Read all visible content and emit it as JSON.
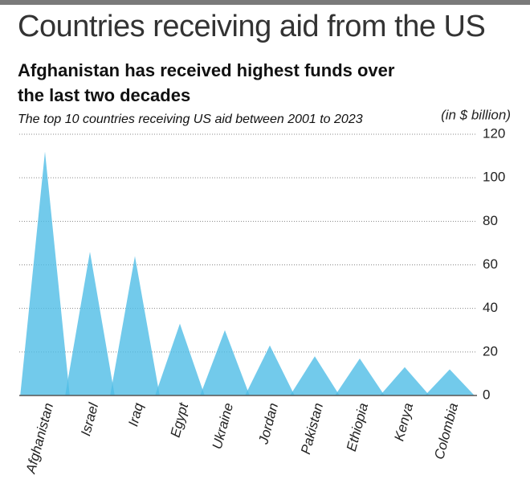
{
  "chart_data": {
    "type": "bar",
    "title": "Countries receiving aid from the US",
    "subtitle": "Afghanistan has received highest funds over the last two decades",
    "caption": "The top 10 countries receiving US aid between 2001 to 2023",
    "y_label": "(in $ billion)",
    "categories": [
      "Afghanistan",
      "Israel",
      "Iraq",
      "Egypt",
      "Ukraine",
      "Jordan",
      "Pakistan",
      "Ethiopia",
      "Kenya",
      "Colombia"
    ],
    "values": [
      112,
      66,
      64,
      33,
      30,
      23,
      18,
      17,
      13,
      12
    ],
    "color": "#4fbde6",
    "ylim": [
      0,
      120
    ],
    "yticks": [
      0,
      20,
      40,
      60,
      80,
      100,
      120
    ],
    "grid": true
  }
}
